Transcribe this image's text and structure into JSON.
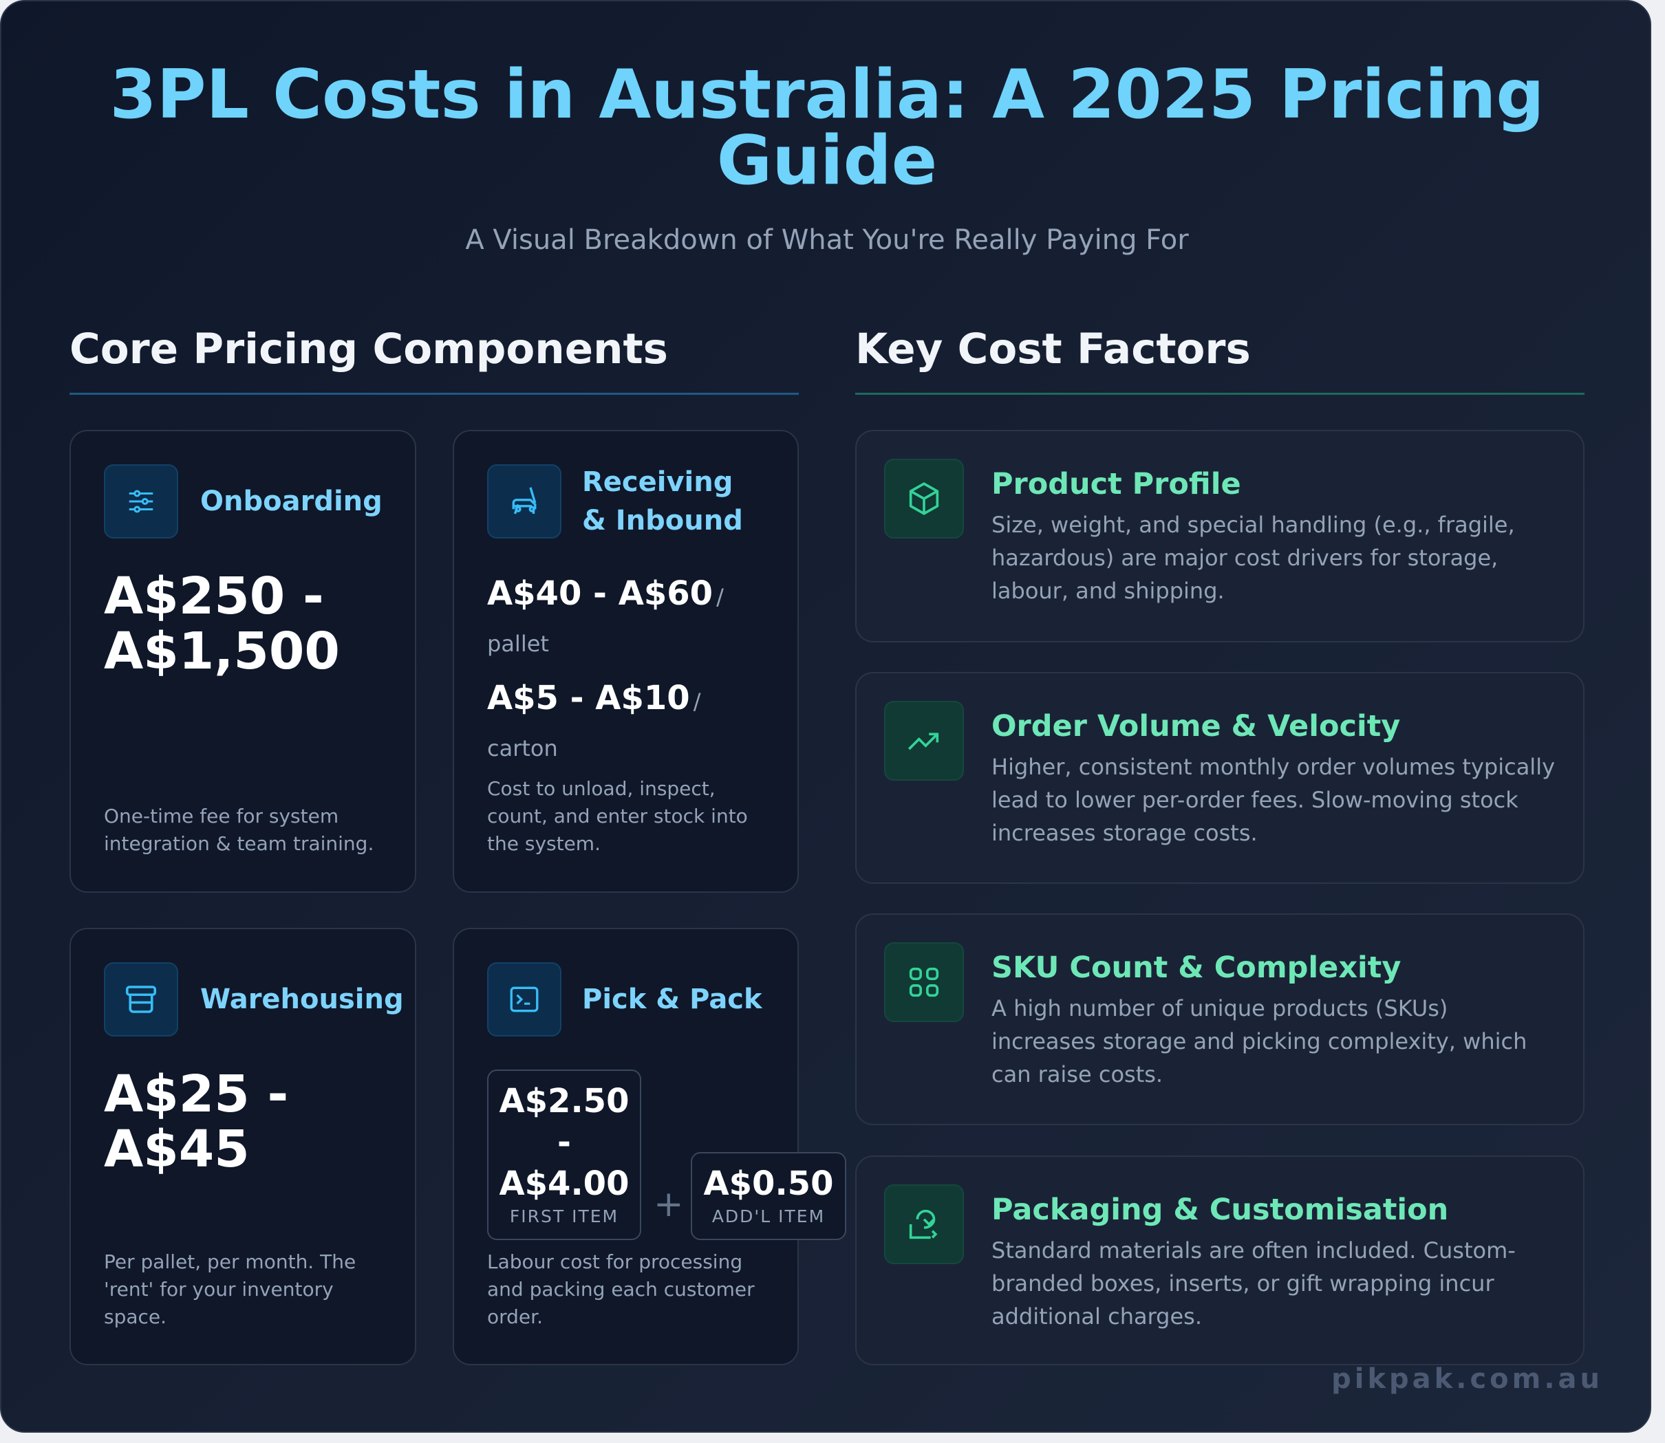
{
  "header": {
    "title_line1": "3PL Costs in Australia: A 2025 Pricing",
    "title_line2": "Guide",
    "subtitle": "A Visual Breakdown of What You're Really Paying For"
  },
  "core": {
    "heading": "Core Pricing Components",
    "onboarding": {
      "title": "Onboarding",
      "icon": "sliders-icon",
      "price_line1": "A$250 -",
      "price_line2": "A$1,500",
      "desc": "One-time fee for system integration & team training."
    },
    "receiving": {
      "title_line1": "Receiving",
      "title_line2": "& Inbound",
      "icon": "forklift-icon",
      "price1": "A$40 - A$60",
      "slash": "/",
      "unit1": "pallet",
      "price2": "A$5 - A$10",
      "unit2": "carton",
      "desc": "Cost to unload, inspect, count, and enter stock into the system."
    },
    "warehousing": {
      "title": "Warehousing",
      "icon": "archive-icon",
      "price_line1": "A$25 -",
      "price_line2": "A$45",
      "desc": "Per pallet, per month. The 'rent' for your inventory space."
    },
    "pickpack": {
      "title": "Pick & Pack",
      "icon": "terminal-icon",
      "first_l1": "A$2.50",
      "first_l2": "-",
      "first_l3": "A$4.00",
      "first_label": "FIRST ITEM",
      "plus": "+",
      "addl": "A$0.50",
      "addl_label": "ADD'L ITEM",
      "desc": "Labour cost for processing and packing each customer order."
    }
  },
  "factors": {
    "heading": "Key Cost Factors",
    "items": [
      {
        "title": "Product Profile",
        "icon": "box-icon",
        "desc": "Size, weight, and special handling (e.g., fragile, hazardous) are major cost drivers for storage, labour, and shipping."
      },
      {
        "title": "Order Volume & Velocity",
        "icon": "trending-up-icon",
        "desc": "Higher, consistent monthly order volumes typically lead to lower per-order fees. Slow-moving stock increases storage costs."
      },
      {
        "title": "SKU Count & Complexity",
        "icon": "grid-icon",
        "desc": "A high number of unique products (SKUs) increases storage and picking complexity, which can raise costs."
      },
      {
        "title": "Packaging & Customisation",
        "icon": "gift-box-icon",
        "desc": "Standard materials are often included. Custom-branded boxes, inserts, or gift wrapping incur additional charges."
      }
    ]
  },
  "footer": {
    "brand": "pikpak.com.au"
  },
  "colors": {
    "accent_blue": "#7dd3fc",
    "accent_green": "#6ee7b7",
    "background": "#0f172a"
  }
}
